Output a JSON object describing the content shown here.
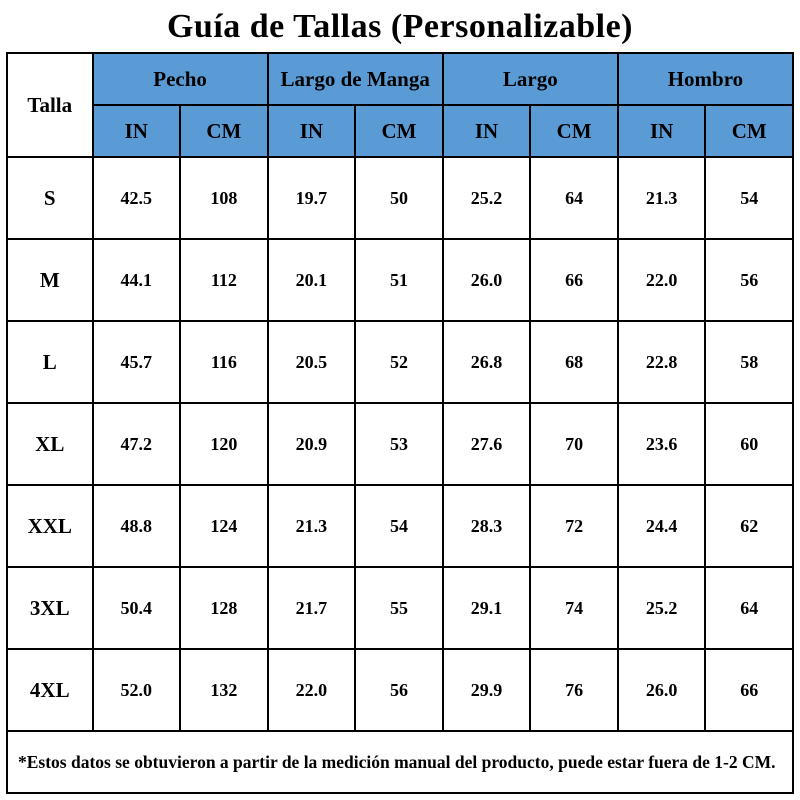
{
  "title": "Guía de Tallas (Personalizable)",
  "colors": {
    "header_bg": "#5b9bd5",
    "border": "#000000",
    "background": "#ffffff"
  },
  "table": {
    "corner_label": "Talla",
    "groups": [
      {
        "label": "Pecho"
      },
      {
        "label": "Largo de Manga"
      },
      {
        "label": "Largo"
      },
      {
        "label": "Hombro"
      }
    ],
    "unit_headers": [
      "IN",
      "CM",
      "IN",
      "CM",
      "IN",
      "CM",
      "IN",
      "CM"
    ],
    "rows": [
      {
        "size": "S",
        "values": [
          "42.5",
          "108",
          "19.7",
          "50",
          "25.2",
          "64",
          "21.3",
          "54"
        ]
      },
      {
        "size": "M",
        "values": [
          "44.1",
          "112",
          "20.1",
          "51",
          "26.0",
          "66",
          "22.0",
          "56"
        ]
      },
      {
        "size": "L",
        "values": [
          "45.7",
          "116",
          "20.5",
          "52",
          "26.8",
          "68",
          "22.8",
          "58"
        ]
      },
      {
        "size": "XL",
        "values": [
          "47.2",
          "120",
          "20.9",
          "53",
          "27.6",
          "70",
          "23.6",
          "60"
        ]
      },
      {
        "size": "XXL",
        "values": [
          "48.8",
          "124",
          "21.3",
          "54",
          "28.3",
          "72",
          "24.4",
          "62"
        ]
      },
      {
        "size": "3XL",
        "values": [
          "50.4",
          "128",
          "21.7",
          "55",
          "29.1",
          "74",
          "25.2",
          "64"
        ]
      },
      {
        "size": "4XL",
        "values": [
          "52.0",
          "132",
          "22.0",
          "56",
          "29.9",
          "76",
          "26.0",
          "66"
        ]
      }
    ],
    "note": "*Estos datos se obtuvieron a partir de la medición manual del producto, puede estar fuera de 1-2 CM."
  },
  "chart_data": {
    "type": "table",
    "title": "Guía de Tallas (Personalizable)",
    "columns": [
      "Talla",
      "Pecho IN",
      "Pecho CM",
      "Largo de Manga IN",
      "Largo de Manga CM",
      "Largo IN",
      "Largo CM",
      "Hombro IN",
      "Hombro CM"
    ],
    "rows": [
      [
        "S",
        42.5,
        108,
        19.7,
        50,
        25.2,
        64,
        21.3,
        54
      ],
      [
        "M",
        44.1,
        112,
        20.1,
        51,
        26.0,
        66,
        22.0,
        56
      ],
      [
        "L",
        45.7,
        116,
        20.5,
        52,
        26.8,
        68,
        22.8,
        58
      ],
      [
        "XL",
        47.2,
        120,
        20.9,
        53,
        27.6,
        70,
        23.6,
        60
      ],
      [
        "XXL",
        48.8,
        124,
        21.3,
        54,
        28.3,
        72,
        24.4,
        62
      ],
      [
        "3XL",
        50.4,
        128,
        21.7,
        55,
        29.1,
        74,
        25.2,
        64
      ],
      [
        "4XL",
        52.0,
        132,
        22.0,
        56,
        29.9,
        76,
        26.0,
        66
      ]
    ],
    "footnote": "*Estos datos se obtuvieron a partir de la medición manual del producto, puede estar fuera de 1-2 CM."
  }
}
